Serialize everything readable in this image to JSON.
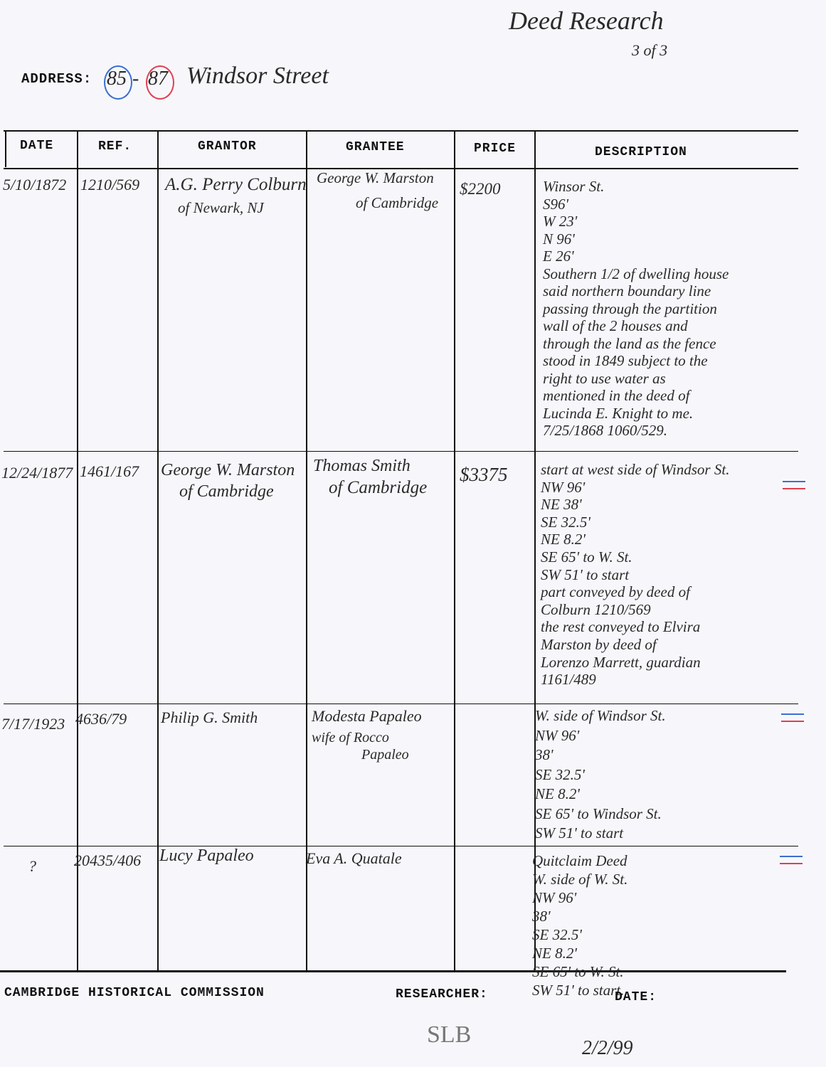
{
  "heading": {
    "title": "Deed Research",
    "page": "3 of 3"
  },
  "address": {
    "label": "ADDRESS:",
    "number_blue": "85",
    "number_red": "87",
    "street": "Windsor Street"
  },
  "colors": {
    "blue_ink": "#3a6fd0",
    "red_ink": "#e04050"
  },
  "columns": [
    "DATE",
    "REF.",
    "GRANTOR",
    "GRANTEE",
    "PRICE",
    "DESCRIPTION"
  ],
  "rows": [
    {
      "date": "5/10/1872",
      "ref": "1210/569",
      "grantor": [
        "A.G. Perry Colburn",
        "of Newark, NJ"
      ],
      "grantee": [
        "George W. Marston",
        "of Cambridge"
      ],
      "price": "$2200",
      "description": [
        "Winsor St.",
        "S96'",
        "W 23'",
        "N 96'",
        "E 26'",
        "Southern 1/2 of dwelling house",
        "said northern boundary line",
        "passing through the partition",
        "wall of the 2 houses and",
        "through the land as the fence",
        "stood in 1849 subject to the",
        "right to use water as",
        "mentioned in the deed of",
        "Lucinda E. Knight to me.",
        "7/25/1868    1060/529."
      ]
    },
    {
      "date": "12/24/1877",
      "ref": "1461/167",
      "grantor": [
        "George W. Marston",
        "of Cambridge"
      ],
      "grantee": [
        "Thomas Smith",
        "of Cambridge"
      ],
      "price": "$3375",
      "description": [
        "start at west side of Windsor St.",
        "NW 96'",
        "NE 38'",
        "SE 32.5'",
        "NE 8.2'",
        "SE 65' to W. St.",
        "SW 51' to start",
        "part conveyed by deed of",
        "Colburn 1210/569",
        "the rest conveyed to Elvira",
        "Marston by deed of",
        "Lorenzo Marrett, guardian",
        "1161/489"
      ]
    },
    {
      "date": "7/17/1923",
      "ref": "4636/79",
      "grantor": [
        "Philip G. Smith"
      ],
      "grantee": [
        "Modesta Papaleo",
        "wife of Rocco",
        "Papaleo"
      ],
      "price": "",
      "description": [
        "W. side of Windsor St.",
        "NW 96'",
        "38'",
        "SE 32.5'",
        "NE 8.2'",
        "SE 65' to Windsor St.",
        "SW 51' to start"
      ]
    },
    {
      "date": "?",
      "ref": "20435/406",
      "grantor": [
        "Lucy Papaleo"
      ],
      "grantee": [
        "Eva A. Quatale"
      ],
      "price": "",
      "description": [
        "Quitclaim Deed",
        "W. side of W. St.",
        "NW 96'",
        "38'",
        "SE 32.5'",
        "NE 8.2'",
        "SE 65' to W. St.",
        "SW 51' to start."
      ]
    }
  ],
  "footer": {
    "org": "CAMBRIDGE HISTORICAL COMMISSION",
    "researcher_label": "RESEARCHER:",
    "researcher": "SLB",
    "date_label": "DATE:",
    "date": "2/2/99"
  }
}
